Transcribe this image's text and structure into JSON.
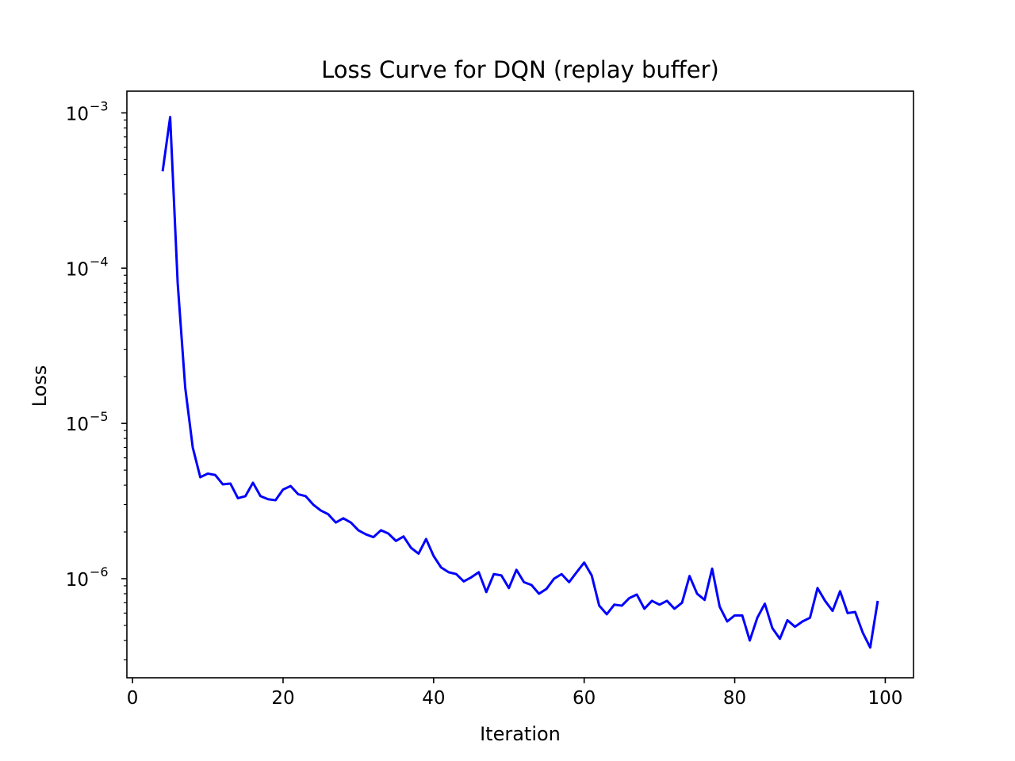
{
  "chart_data": {
    "type": "line",
    "title": "Loss Curve for DQN (replay buffer)",
    "xlabel": "Iteration",
    "ylabel": "Loss",
    "xlim": [
      -0.75,
      103.75
    ],
    "ylim": [
      2.3e-07,
      0.00138
    ],
    "y_scale": "log",
    "grid": false,
    "line_color": "#0000ff",
    "x_ticks": [
      {
        "value": 0,
        "label": "0"
      },
      {
        "value": 20,
        "label": "20"
      },
      {
        "value": 40,
        "label": "40"
      },
      {
        "value": 60,
        "label": "60"
      },
      {
        "value": 80,
        "label": "80"
      },
      {
        "value": 100,
        "label": "100"
      }
    ],
    "y_ticks": [
      {
        "value": 1e-06,
        "base": "10",
        "exp": "−6"
      },
      {
        "value": 1e-05,
        "base": "10",
        "exp": "−5"
      },
      {
        "value": 0.0001,
        "base": "10",
        "exp": "−4"
      },
      {
        "value": 0.001,
        "base": "10",
        "exp": "−3"
      }
    ],
    "series": [
      {
        "x": [
          4,
          5,
          6,
          7,
          8,
          9,
          10,
          11,
          12,
          13,
          14,
          15,
          16,
          17,
          18,
          19,
          20,
          21,
          22,
          23,
          24,
          25,
          26,
          27,
          28,
          29,
          30,
          31,
          32,
          33,
          34,
          35,
          36,
          37,
          38,
          39,
          40,
          41,
          42,
          43,
          44,
          45,
          46,
          47,
          48,
          49,
          50,
          51,
          52,
          53,
          54,
          55,
          56,
          57,
          58,
          59,
          60,
          61,
          62,
          63,
          64,
          65,
          66,
          67,
          68,
          69,
          70,
          71,
          72,
          73,
          74,
          75,
          76,
          77,
          78,
          79,
          80,
          81,
          82,
          83,
          84,
          85,
          86,
          87,
          88,
          89,
          90,
          91,
          92,
          93,
          94,
          95,
          96,
          97,
          98,
          99
        ],
        "values": [
          0.00042,
          0.00094,
          8e-05,
          1.7e-05,
          7e-06,
          4.5e-06,
          4.75e-06,
          4.65e-06,
          4.05e-06,
          4.1e-06,
          3.3e-06,
          3.4e-06,
          4.15e-06,
          3.4e-06,
          3.25e-06,
          3.2e-06,
          3.75e-06,
          3.95e-06,
          3.5e-06,
          3.4e-06,
          3e-06,
          2.75e-06,
          2.6e-06,
          2.3e-06,
          2.45e-06,
          2.3e-06,
          2.05e-06,
          1.93e-06,
          1.85e-06,
          2.05e-06,
          1.95e-06,
          1.75e-06,
          1.87e-06,
          1.58e-06,
          1.45e-06,
          1.8e-06,
          1.4e-06,
          1.18e-06,
          1.1e-06,
          1.07e-06,
          9.6e-07,
          1.02e-06,
          1.1e-06,
          8.2e-07,
          1.07e-06,
          1.05e-06,
          8.7e-07,
          1.14e-06,
          9.5e-07,
          9.1e-07,
          8e-07,
          8.6e-07,
          1e-06,
          1.07e-06,
          9.5e-07,
          1.1e-06,
          1.27e-06,
          1.05e-06,
          6.7e-07,
          5.9e-07,
          6.8e-07,
          6.7e-07,
          7.5e-07,
          7.9e-07,
          6.4e-07,
          7.2e-07,
          6.8e-07,
          7.2e-07,
          6.4e-07,
          7e-07,
          1.04e-06,
          8e-07,
          7.3e-07,
          1.16e-06,
          6.6e-07,
          5.3e-07,
          5.8e-07,
          5.8e-07,
          4e-07,
          5.6e-07,
          6.9e-07,
          4.8e-07,
          4.1e-07,
          5.4e-07,
          4.9e-07,
          5.3e-07,
          5.6e-07,
          8.7e-07,
          7.2e-07,
          6.2e-07,
          8.3e-07,
          6e-07,
          6.1e-07,
          4.5e-07,
          3.6e-07,
          7.2e-07
        ]
      }
    ]
  }
}
